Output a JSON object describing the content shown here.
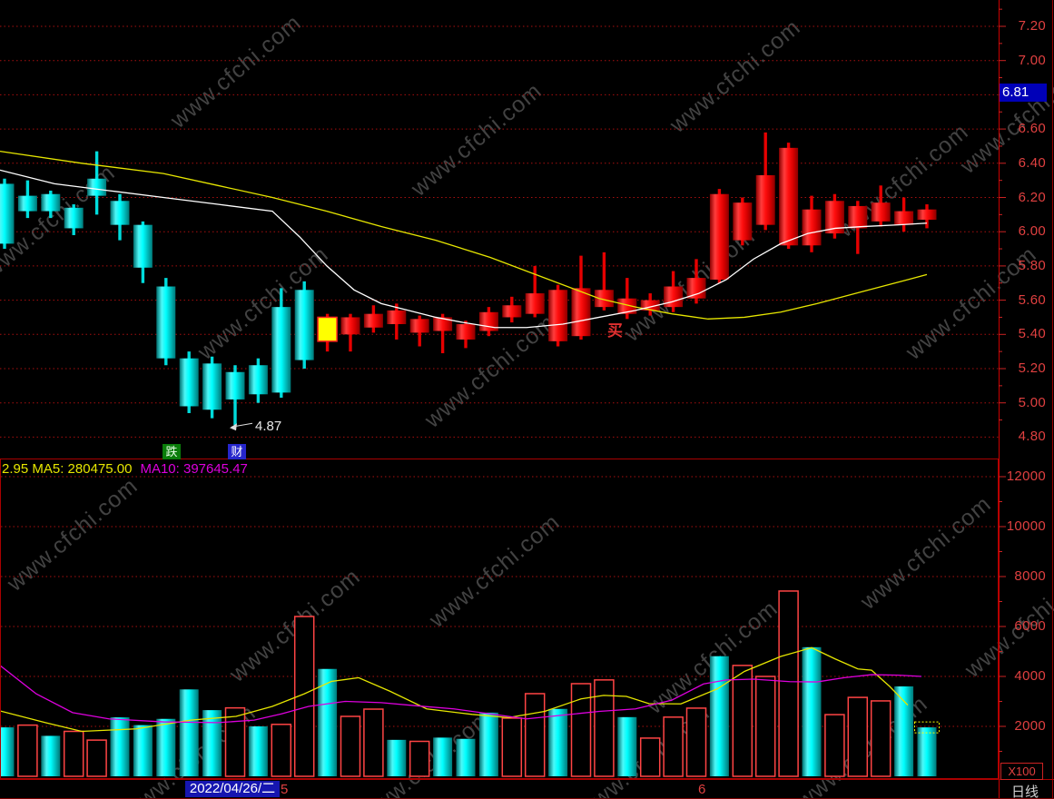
{
  "app": {
    "watermark_text": "www.cfchi.com"
  },
  "price_panel": {
    "axis_labels": [
      "7.20",
      "7.00",
      "6.80",
      "6.60",
      "6.40",
      "6.20",
      "6.00",
      "5.80",
      "5.60",
      "5.40",
      "5.20",
      "5.00",
      "4.80"
    ],
    "last_price_tag": "6.81",
    "annotations": {
      "low_label": "4.87",
      "buy_marker": "买",
      "flag_left": "跌",
      "flag_right": "财"
    }
  },
  "volume_panel": {
    "header_left": "2.95 MA5: 280475.00",
    "header_right": "MA10: 397645.47",
    "axis_labels": [
      "12000",
      "10000",
      "8000",
      "6000",
      "4000",
      "2000"
    ],
    "unit_label": "X100"
  },
  "bottom_bar": {
    "date_tag": "2022/04/26/二",
    "month_marker_1": "5",
    "month_marker_2": "6",
    "period_label": "日线"
  },
  "colors": {
    "up": "#e60000",
    "down": "#00e2e2",
    "selected": "#ffff00",
    "ma_white": "#ffffff",
    "ma_yellow": "#e6e600",
    "ma_magenta": "#dd00dd",
    "axis_text": "#e04040",
    "grid": "#bb1111",
    "tag_blue": "#0000b8",
    "date_blue": "#1616b0"
  },
  "chart_data": [
    {
      "type": "candlestick",
      "panel": "price",
      "title": "",
      "ylim": [
        4.8,
        7.2
      ],
      "yticks": [
        7.2,
        7.0,
        6.8,
        6.6,
        6.4,
        6.2,
        6.0,
        5.8,
        5.6,
        5.4,
        5.2,
        5.0,
        4.8
      ],
      "last_price": 6.81,
      "grid": "dotted-red-horizontal",
      "candles_format": [
        "open",
        "high",
        "low",
        "close",
        "dir(d=down-cyan,u=up-red,s=selected-yellow)"
      ],
      "candles": [
        [
          6.28,
          6.31,
          5.9,
          5.93,
          "d"
        ],
        [
          6.21,
          6.3,
          6.08,
          6.12,
          "d"
        ],
        [
          6.22,
          6.24,
          6.08,
          6.12,
          "d"
        ],
        [
          6.14,
          6.16,
          5.98,
          6.02,
          "d"
        ],
        [
          6.31,
          6.47,
          6.1,
          6.21,
          "d"
        ],
        [
          6.18,
          6.22,
          5.95,
          6.04,
          "d"
        ],
        [
          6.04,
          6.06,
          5.7,
          5.79,
          "d"
        ],
        [
          5.68,
          5.73,
          5.22,
          5.26,
          "d"
        ],
        [
          5.26,
          5.3,
          4.94,
          4.98,
          "d"
        ],
        [
          5.23,
          5.27,
          4.91,
          4.96,
          "d"
        ],
        [
          5.18,
          5.22,
          4.87,
          5.02,
          "d"
        ],
        [
          5.22,
          5.26,
          5.0,
          5.05,
          "d"
        ],
        [
          5.56,
          5.67,
          5.03,
          5.06,
          "d"
        ],
        [
          5.66,
          5.71,
          5.2,
          5.25,
          "d"
        ],
        [
          5.36,
          5.52,
          5.3,
          5.5,
          "s"
        ],
        [
          5.4,
          5.52,
          5.3,
          5.5,
          "u"
        ],
        [
          5.44,
          5.57,
          5.41,
          5.52,
          "u"
        ],
        [
          5.46,
          5.58,
          5.37,
          5.54,
          "u"
        ],
        [
          5.41,
          5.51,
          5.33,
          5.49,
          "u"
        ],
        [
          5.42,
          5.52,
          5.29,
          5.5,
          "u"
        ],
        [
          5.37,
          5.48,
          5.32,
          5.46,
          "u"
        ],
        [
          5.42,
          5.56,
          5.39,
          5.53,
          "u"
        ],
        [
          5.5,
          5.62,
          5.47,
          5.57,
          "u"
        ],
        [
          5.52,
          5.8,
          5.5,
          5.64,
          "u"
        ],
        [
          5.36,
          5.69,
          5.33,
          5.66,
          "u"
        ],
        [
          5.39,
          5.86,
          5.37,
          5.67,
          "u"
        ],
        [
          5.56,
          5.88,
          5.54,
          5.66,
          "u"
        ],
        [
          5.52,
          5.73,
          5.49,
          5.61,
          "u"
        ],
        [
          5.54,
          5.64,
          5.51,
          5.6,
          "u"
        ],
        [
          5.56,
          5.77,
          5.53,
          5.68,
          "u"
        ],
        [
          5.61,
          5.84,
          5.58,
          5.73,
          "u"
        ],
        [
          5.72,
          6.25,
          5.7,
          6.22,
          "u"
        ],
        [
          5.95,
          6.2,
          5.92,
          6.17,
          "u"
        ],
        [
          6.04,
          6.58,
          6.01,
          6.33,
          "u"
        ],
        [
          5.92,
          6.52,
          5.9,
          6.49,
          "u"
        ],
        [
          5.92,
          6.21,
          5.88,
          6.13,
          "u"
        ],
        [
          5.99,
          6.22,
          5.96,
          6.18,
          "u"
        ],
        [
          6.02,
          6.18,
          5.87,
          6.15,
          "u"
        ],
        [
          6.06,
          6.27,
          6.03,
          6.17,
          "u"
        ],
        [
          6.04,
          6.2,
          6.0,
          6.12,
          "u"
        ],
        [
          6.07,
          6.16,
          6.02,
          6.13,
          "u"
        ]
      ],
      "ma_white": [
        [
          0,
          6.36
        ],
        [
          60,
          6.28
        ],
        [
          120,
          6.24
        ],
        [
          180,
          6.2
        ],
        [
          240,
          6.16
        ],
        [
          300,
          6.12
        ],
        [
          330,
          5.97
        ],
        [
          360,
          5.8
        ],
        [
          390,
          5.66
        ],
        [
          420,
          5.58
        ],
        [
          450,
          5.54
        ],
        [
          480,
          5.5
        ],
        [
          510,
          5.47
        ],
        [
          545,
          5.44
        ],
        [
          580,
          5.44
        ],
        [
          620,
          5.46
        ],
        [
          660,
          5.5
        ],
        [
          700,
          5.54
        ],
        [
          740,
          5.59
        ],
        [
          770,
          5.64
        ],
        [
          800,
          5.72
        ],
        [
          830,
          5.84
        ],
        [
          860,
          5.93
        ],
        [
          890,
          5.99
        ],
        [
          920,
          6.02
        ],
        [
          950,
          6.03
        ],
        [
          990,
          6.04
        ],
        [
          1021,
          6.05
        ]
      ],
      "ma_yellow": [
        [
          0,
          6.47
        ],
        [
          90,
          6.4
        ],
        [
          180,
          6.34
        ],
        [
          240,
          6.27
        ],
        [
          300,
          6.2
        ],
        [
          360,
          6.12
        ],
        [
          420,
          6.03
        ],
        [
          480,
          5.95
        ],
        [
          540,
          5.85
        ],
        [
          600,
          5.73
        ],
        [
          660,
          5.61
        ],
        [
          700,
          5.56
        ],
        [
          740,
          5.52
        ],
        [
          780,
          5.49
        ],
        [
          820,
          5.5
        ],
        [
          860,
          5.53
        ],
        [
          900,
          5.58
        ],
        [
          950,
          5.65
        ],
        [
          1000,
          5.72
        ],
        [
          1021,
          5.75
        ]
      ],
      "annotations": [
        {
          "label": "4.87",
          "index": 10,
          "price": 4.87,
          "kind": "low-arrow"
        },
        {
          "label": "买",
          "index": 26,
          "price": 5.42,
          "kind": "buy-signal"
        },
        {
          "label": "跌",
          "index": 7,
          "kind": "flag-green"
        },
        {
          "label": "财",
          "index": 10,
          "kind": "flag-blue"
        }
      ]
    },
    {
      "type": "bar",
      "panel": "volume",
      "unit": "X100",
      "ylim": [
        0,
        12400
      ],
      "yticks": [
        12000,
        10000,
        8000,
        6000,
        4000,
        2000
      ],
      "ma5": 280475.0,
      "ma10": 397645.47,
      "bars_format": [
        "volume_x100",
        "dir(d=solid-cyan,u=hollow-red)"
      ],
      "bars": [
        [
          1960,
          "d"
        ],
        [
          2050,
          "u"
        ],
        [
          1620,
          "d"
        ],
        [
          1800,
          "u"
        ],
        [
          1450,
          "u"
        ],
        [
          2360,
          "d"
        ],
        [
          2050,
          "d"
        ],
        [
          2300,
          "d"
        ],
        [
          3480,
          "d"
        ],
        [
          2650,
          "d"
        ],
        [
          2740,
          "u"
        ],
        [
          2000,
          "d"
        ],
        [
          2080,
          "u"
        ],
        [
          6400,
          "u"
        ],
        [
          4300,
          "d"
        ],
        [
          2400,
          "u"
        ],
        [
          2690,
          "u"
        ],
        [
          1460,
          "d"
        ],
        [
          1400,
          "u"
        ],
        [
          1550,
          "d"
        ],
        [
          1500,
          "d"
        ],
        [
          2550,
          "d"
        ],
        [
          2330,
          "u"
        ],
        [
          3310,
          "u"
        ],
        [
          2700,
          "d"
        ],
        [
          3710,
          "u"
        ],
        [
          3860,
          "u"
        ],
        [
          2370,
          "d"
        ],
        [
          1530,
          "u"
        ],
        [
          2370,
          "u"
        ],
        [
          2730,
          "u"
        ],
        [
          4810,
          "d"
        ],
        [
          4440,
          "u"
        ],
        [
          4000,
          "u"
        ],
        [
          7420,
          "u"
        ],
        [
          5170,
          "d"
        ],
        [
          2470,
          "u"
        ],
        [
          3160,
          "u"
        ],
        [
          3020,
          "u"
        ],
        [
          3600,
          "d"
        ],
        [
          1960,
          "d"
        ]
      ],
      "selected_index": 40,
      "ma5_yellow": [
        [
          0,
          2620
        ],
        [
          50,
          2150
        ],
        [
          90,
          1800
        ],
        [
          150,
          1900
        ],
        [
          210,
          2250
        ],
        [
          260,
          2400
        ],
        [
          300,
          2800
        ],
        [
          335,
          3300
        ],
        [
          365,
          3800
        ],
        [
          395,
          3950
        ],
        [
          430,
          3400
        ],
        [
          470,
          2700
        ],
        [
          520,
          2480
        ],
        [
          560,
          2350
        ],
        [
          600,
          2600
        ],
        [
          640,
          3100
        ],
        [
          665,
          3240
        ],
        [
          690,
          3200
        ],
        [
          715,
          2910
        ],
        [
          750,
          2900
        ],
        [
          790,
          3500
        ],
        [
          820,
          4200
        ],
        [
          860,
          4800
        ],
        [
          894,
          5150
        ],
        [
          920,
          4700
        ],
        [
          945,
          4300
        ],
        [
          960,
          4250
        ],
        [
          980,
          3600
        ],
        [
          1000,
          2850
        ]
      ],
      "ma10_magenta": [
        [
          0,
          4440
        ],
        [
          40,
          3300
        ],
        [
          80,
          2550
        ],
        [
          120,
          2300
        ],
        [
          180,
          2180
        ],
        [
          240,
          2150
        ],
        [
          280,
          2250
        ],
        [
          310,
          2500
        ],
        [
          340,
          2800
        ],
        [
          380,
          3000
        ],
        [
          420,
          2950
        ],
        [
          460,
          2820
        ],
        [
          500,
          2700
        ],
        [
          540,
          2500
        ],
        [
          580,
          2300
        ],
        [
          620,
          2450
        ],
        [
          660,
          2600
        ],
        [
          700,
          2700
        ],
        [
          740,
          3050
        ],
        [
          775,
          3700
        ],
        [
          800,
          3860
        ],
        [
          830,
          3890
        ],
        [
          870,
          3790
        ],
        [
          900,
          3780
        ],
        [
          930,
          3950
        ],
        [
          960,
          4070
        ],
        [
          990,
          4050
        ],
        [
          1015,
          4000
        ]
      ]
    }
  ]
}
